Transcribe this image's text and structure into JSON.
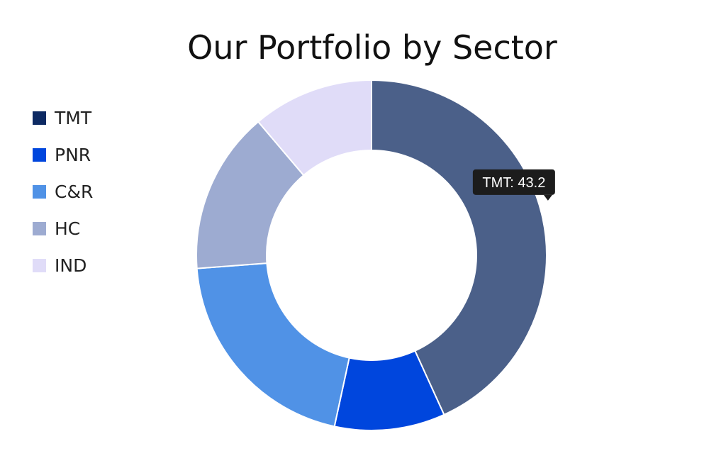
{
  "chart_data": {
    "type": "pie",
    "title": "Our Portfolio by Sector",
    "donut": true,
    "categories": [
      "TMT",
      "PNR",
      "C&R",
      "HC",
      "IND"
    ],
    "values": [
      43.2,
      10.2,
      20.4,
      15.0,
      11.2
    ],
    "colors": [
      "#0d2a63",
      "#0046dd",
      "#5092e6",
      "#9dabd1",
      "#e0dcf8"
    ],
    "slice_colors": [
      "#4b6089",
      "#0046dd",
      "#5092e6",
      "#9dabd1",
      "#e0dcf8"
    ],
    "legend_position": "left",
    "tooltip": {
      "category": "TMT",
      "value": 43.2,
      "text": "TMT: 43.2"
    }
  }
}
